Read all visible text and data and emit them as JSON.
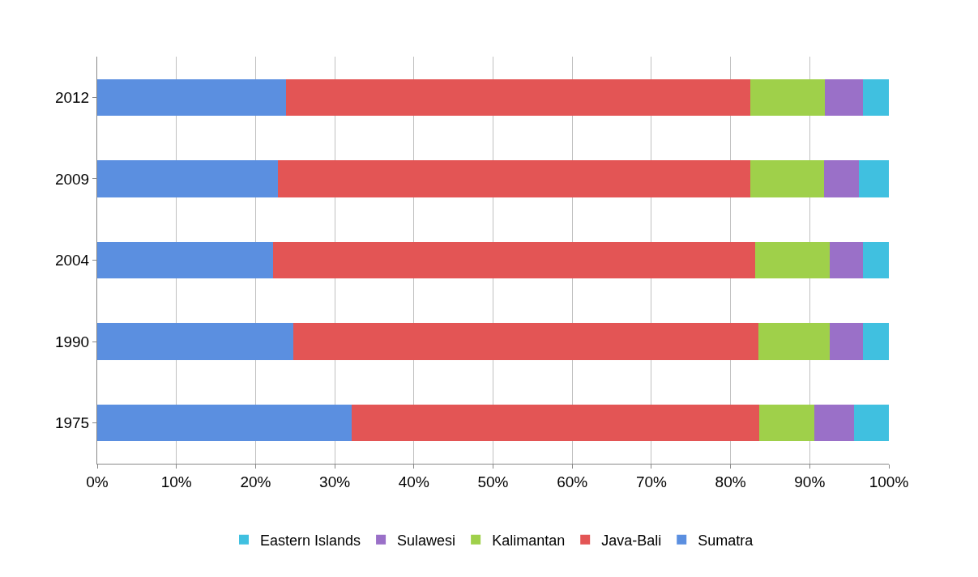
{
  "chart_data": {
    "type": "bar",
    "orientation": "horizontal",
    "stacked": true,
    "categories": [
      "2012",
      "2009",
      "2004",
      "1990",
      "1975"
    ],
    "series": [
      {
        "name": "Sumatra",
        "color": "#5b8fe0",
        "values": [
          23.8,
          22.8,
          22.2,
          24.8,
          32.1
        ]
      },
      {
        "name": "Java-Bali",
        "color": "#e35555",
        "values": [
          58.7,
          59.7,
          60.9,
          58.7,
          51.5
        ]
      },
      {
        "name": "Kalimantan",
        "color": "#9fd04a",
        "values": [
          9.4,
          9.3,
          9.4,
          9.0,
          7.0
        ]
      },
      {
        "name": "Sulawesi",
        "color": "#9a70c8",
        "values": [
          4.8,
          4.4,
          4.2,
          4.2,
          5.0
        ]
      },
      {
        "name": "Eastern Islands",
        "color": "#40c0e0",
        "values": [
          3.3,
          3.8,
          3.3,
          3.3,
          4.4
        ]
      }
    ],
    "xlim": [
      0,
      100
    ],
    "xticks": [
      {
        "value": 0,
        "label": "0%"
      },
      {
        "value": 10,
        "label": "10%"
      },
      {
        "value": 20,
        "label": "20%"
      },
      {
        "value": 30,
        "label": "30%"
      },
      {
        "value": 40,
        "label": "40%"
      },
      {
        "value": 50,
        "label": "50%"
      },
      {
        "value": 60,
        "label": "60%"
      },
      {
        "value": 70,
        "label": "70%"
      },
      {
        "value": 80,
        "label": "80%"
      },
      {
        "value": 90,
        "label": "90%"
      },
      {
        "value": 100,
        "label": "100%"
      }
    ],
    "grid": "x",
    "legend": "bottom"
  }
}
